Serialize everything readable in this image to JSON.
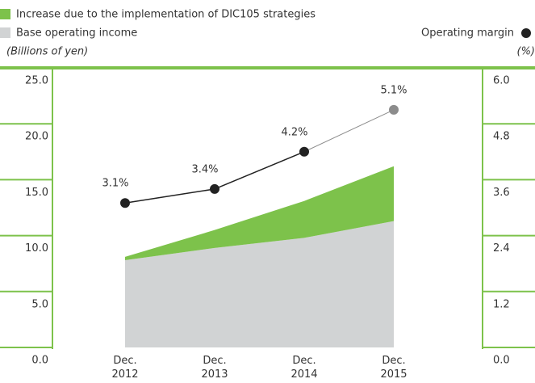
{
  "chart_data": {
    "type": "stacked-area-line",
    "legend": {
      "increase": "Increase due to the implementation of DIC105 strategies",
      "base": "Base operating income",
      "margin": "Operating margin"
    },
    "y_label": "(Billions of yen)",
    "y2_label": "(%)",
    "categories": [
      "Dec.\n2012",
      "Dec.\n2013",
      "Dec.\n2014",
      "Dec.\n2015"
    ],
    "series": [
      {
        "name": "Base operating income",
        "color": "#d1d3d4",
        "values": [
          7.8,
          8.9,
          9.8,
          11.3
        ]
      },
      {
        "name": "Increase due to the implementation of DIC105 strategies",
        "color": "#7dc24b",
        "values": [
          0.3,
          1.6,
          3.3,
          4.9
        ]
      },
      {
        "name": "Operating margin",
        "color": "#222222",
        "forecast_color": "#8c8c8c",
        "axis": "y2",
        "values": [
          3.1,
          3.4,
          4.2,
          5.1
        ],
        "value_labels": [
          "3.1%",
          "3.4%",
          "4.2%",
          "5.1%"
        ]
      }
    ],
    "ylim": [
      0,
      25
    ],
    "yticks": [
      {
        "value": 0,
        "label": "0.0"
      },
      {
        "value": 5,
        "label": "5.0"
      },
      {
        "value": 10,
        "label": "10.0"
      },
      {
        "value": 15,
        "label": "15.0"
      },
      {
        "value": 20,
        "label": "20.0"
      },
      {
        "value": 25,
        "label": "25.0"
      }
    ],
    "y2lim": [
      0,
      6
    ],
    "y2ticks": [
      {
        "value": 0,
        "label": "0.0"
      },
      1.2,
      2.4,
      3.6,
      4.8,
      {
        "value": 6,
        "label": "6.0"
      }
    ]
  }
}
